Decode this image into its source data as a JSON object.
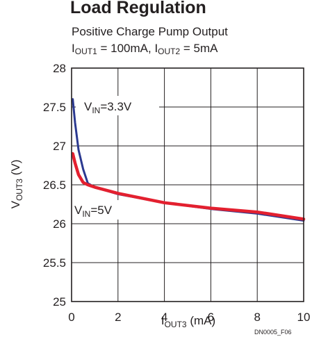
{
  "header": {
    "title": "Load Regulation",
    "subtitle": "Positive Charge Pump Output",
    "conditions": {
      "i1_main": "I",
      "i1_sub": "OUT1",
      "i1_rest": " = 100mA, ",
      "i2_main": "I",
      "i2_sub": "OUT2",
      "i2_rest": " = 5mA"
    }
  },
  "footer": {
    "figure_code": "DN0005_F06"
  },
  "chart_data": {
    "type": "line",
    "xlabel": {
      "main": "I",
      "sub": "OUT3",
      "rest": " (mA)"
    },
    "ylabel": {
      "main": "V",
      "sub": "OUT3",
      "rest": " (V)"
    },
    "xlim": [
      0,
      10
    ],
    "ylim": [
      25,
      28
    ],
    "x_ticks": [
      0,
      2,
      4,
      6,
      8,
      10
    ],
    "x_tick_labels": [
      "0",
      "2",
      "4",
      "6",
      "8",
      "10"
    ],
    "y_ticks": [
      25,
      25.5,
      26,
      26.5,
      27,
      27.5,
      28
    ],
    "y_tick_labels": [
      "25",
      "25.5",
      "26",
      "26.5",
      "27",
      "27.5",
      "28"
    ],
    "grid": true,
    "series": [
      {
        "name": "VIN=3.3V",
        "label": {
          "main": "V",
          "sub": "IN",
          "rest": "=3.3V"
        },
        "color": "#2b3990",
        "x": [
          0.05,
          0.15,
          0.3,
          0.5,
          0.7,
          1,
          2,
          4,
          6,
          8,
          10
        ],
        "y": [
          27.6,
          27.3,
          26.95,
          26.7,
          26.52,
          26.47,
          26.38,
          26.27,
          26.19,
          26.13,
          26.04
        ]
      },
      {
        "name": "VIN=5V",
        "label": {
          "main": "V",
          "sub": "IN",
          "rest": "=5V"
        },
        "color": "#e3202f",
        "x": [
          0.05,
          0.15,
          0.3,
          0.5,
          0.7,
          1,
          2,
          4,
          6,
          8,
          10
        ],
        "y": [
          26.9,
          26.78,
          26.63,
          26.53,
          26.5,
          26.47,
          26.39,
          26.27,
          26.2,
          26.15,
          26.06
        ]
      }
    ]
  }
}
